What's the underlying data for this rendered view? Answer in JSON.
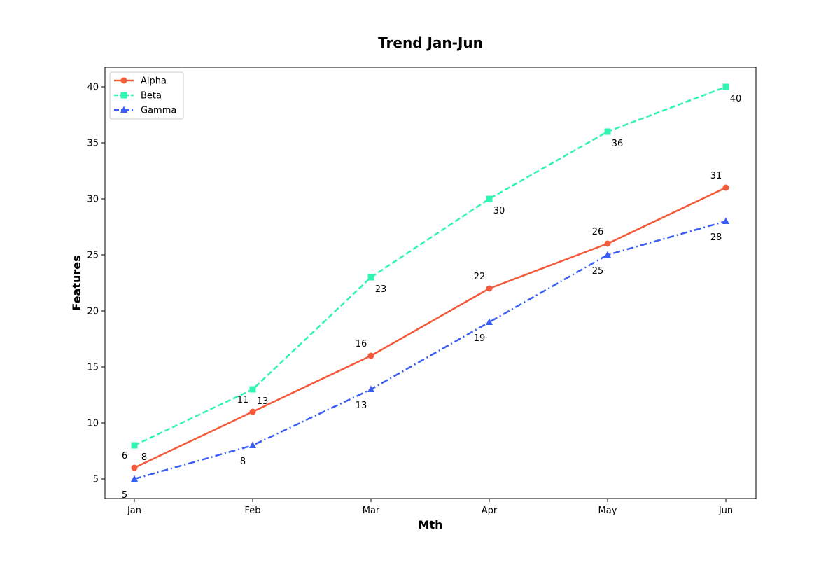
{
  "chart_data": {
    "type": "line",
    "title": "Trend Jan-Jun",
    "xlabel": "Mth",
    "ylabel": "Features",
    "categories": [
      "Jan",
      "Feb",
      "Mar",
      "Apr",
      "May",
      "Jun"
    ],
    "ylim": [
      3.25,
      41.75
    ],
    "yticks": [
      5,
      10,
      15,
      20,
      25,
      30,
      35,
      40
    ],
    "grid": false,
    "legend_position": "upper-left",
    "series": [
      {
        "name": "Alpha",
        "values": [
          6,
          11,
          16,
          22,
          26,
          31
        ],
        "color": "#f4593a",
        "line_style": "solid",
        "marker": "circle",
        "label_position": "above-left"
      },
      {
        "name": "Beta",
        "values": [
          8,
          13,
          23,
          30,
          36,
          40
        ],
        "color": "#2ff5b0",
        "line_style": "dashed",
        "marker": "square",
        "label_position": "below-right"
      },
      {
        "name": "Gamma",
        "values": [
          5,
          8,
          13,
          19,
          25,
          28
        ],
        "color": "#3a5ef4",
        "line_style": "dash-dot",
        "marker": "triangle",
        "label_position": "below-left"
      }
    ]
  }
}
